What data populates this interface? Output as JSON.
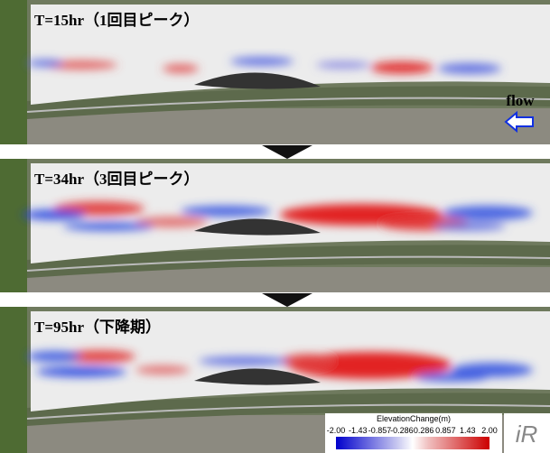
{
  "panels": [
    {
      "title": "T=15hr（1回目ピーク）"
    },
    {
      "title": "T=34hr（3回目ピーク）"
    },
    {
      "title": "T=95hr（下降期）"
    }
  ],
  "flow_label": "flow",
  "colorbar": {
    "title": "ElevationChange(m)",
    "ticks": [
      "-2.00",
      "-1.43",
      "-0.857",
      "-0.286",
      "0.286",
      "0.857",
      "1.43",
      "2.00"
    ]
  },
  "logo": "iR"
}
